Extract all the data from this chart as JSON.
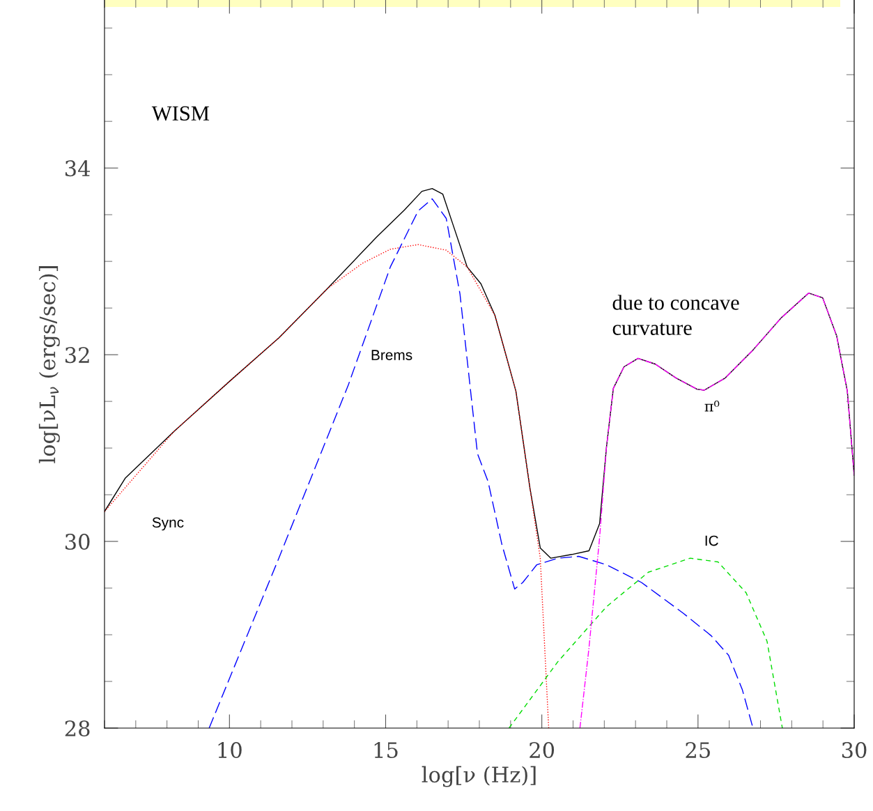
{
  "chart_data": {
    "type": "line",
    "xlabel": "log[ν (Hz)]",
    "ylabel": "log[νL$_{ν}$ (ergs/sec)]",
    "xlim": [
      6,
      30
    ],
    "ylim": [
      28,
      35.8
    ],
    "xticks": [
      10,
      15,
      20,
      25,
      30
    ],
    "yticks": [
      28,
      30,
      32,
      34
    ],
    "grid": false,
    "legend": false,
    "series": [
      {
        "color": "#000000",
        "line_style": "solid",
        "x": [
          6,
          6.67,
          8.23,
          10.02,
          11.58,
          13.14,
          14.71,
          15.6,
          16.16,
          16.49,
          16.83,
          17.16,
          17.61,
          18.05,
          18.5,
          19.17,
          19.62,
          19.95,
          20.29,
          20.96,
          21.51,
          21.85,
          22.07,
          22.29,
          22.63,
          23.08,
          23.63,
          24.3,
          24.97,
          25.2,
          25.87,
          26.76,
          27.65,
          28.54,
          28.99,
          29.44,
          29.78,
          30
        ],
        "values": [
          30.32,
          30.68,
          31.18,
          31.72,
          32.18,
          32.71,
          33.26,
          33.55,
          33.75,
          33.78,
          33.72,
          33.39,
          32.94,
          32.76,
          32.42,
          31.61,
          30.57,
          29.93,
          29.82,
          29.86,
          29.9,
          30.19,
          31.01,
          31.64,
          31.87,
          31.96,
          31.9,
          31.75,
          31.63,
          31.62,
          31.75,
          32.05,
          32.39,
          32.66,
          32.61,
          32.2,
          31.61,
          30.71
        ]
      },
      {
        "color": "#ff0000",
        "line_style": "dotted",
        "x": [
          6,
          8.23,
          10.02,
          11.58,
          13.14,
          14.26,
          15.15,
          16.04,
          16.94,
          17.61,
          18.5,
          19.17,
          19.62,
          19.95,
          20.06,
          20.22
        ],
        "values": [
          30.32,
          31.18,
          31.72,
          32.18,
          32.71,
          32.98,
          33.13,
          33.18,
          33.12,
          32.94,
          32.42,
          31.61,
          30.57,
          29.82,
          29.08,
          28.0
        ]
      },
      {
        "color": "#0000ff",
        "line_style": "dashed",
        "x": [
          9.35,
          11.58,
          13.81,
          15.15,
          16.04,
          16.49,
          16.94,
          17.38,
          17.72,
          17.94,
          18.28,
          18.72,
          19.13,
          19.39,
          19.84,
          20.51,
          21.18,
          22.07,
          23.19,
          24.53,
          25.42,
          25.98,
          26.42,
          26.76
        ],
        "values": [
          28.0,
          29.82,
          31.68,
          32.94,
          33.54,
          33.67,
          33.46,
          32.65,
          31.61,
          30.94,
          30.64,
          29.97,
          29.49,
          29.56,
          29.75,
          29.82,
          29.84,
          29.75,
          29.56,
          29.23,
          28.99,
          28.78,
          28.41,
          28.0
        ]
      },
      {
        "color": "#00dd00",
        "line_style": "dashed",
        "x": [
          18.95,
          20.51,
          22.07,
          23.41,
          24.75,
          25.64,
          26.54,
          27.21,
          27.7
        ],
        "values": [
          28.0,
          28.71,
          29.3,
          29.67,
          29.82,
          29.78,
          29.45,
          28.93,
          28.0
        ]
      },
      {
        "color": "#ff00ff",
        "line_style": "dashdot",
        "x": [
          21.22,
          21.51,
          21.85,
          22.07,
          22.29,
          22.63,
          23.08,
          23.63,
          24.3,
          24.97,
          25.2,
          25.87,
          26.76,
          27.65,
          28.54,
          28.99,
          29.44,
          29.78,
          30
        ],
        "values": [
          28.0,
          28.86,
          30.04,
          31.01,
          31.64,
          31.87,
          31.96,
          31.9,
          31.75,
          31.63,
          31.62,
          31.75,
          32.05,
          32.39,
          32.66,
          32.61,
          32.2,
          31.61,
          30.71
        ]
      }
    ],
    "annotations": [
      "WISM",
      "due to concave\ncurvature",
      "Brems",
      "Sync",
      "IC",
      "π⁰"
    ]
  }
}
